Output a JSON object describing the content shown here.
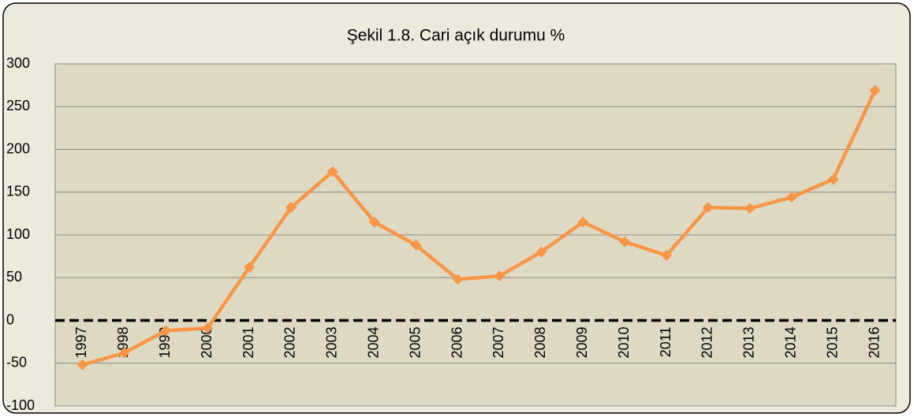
{
  "chart_data": {
    "type": "line",
    "title": "Şekil 1.8. Cari açık durumu %",
    "categories": [
      "1997",
      "1998",
      "1999",
      "2000",
      "2001",
      "2002",
      "2003",
      "2004",
      "2005",
      "2006",
      "2007",
      "2008",
      "2009",
      "2010",
      "2011",
      "2012",
      "2013",
      "2014",
      "2015",
      "2016"
    ],
    "series": [
      {
        "name": "Cari açık durumu",
        "color": "#f79646",
        "values": [
          -52,
          -38,
          -12,
          -9,
          62,
          132,
          174,
          115,
          88,
          48,
          52,
          80,
          115,
          92,
          76,
          132,
          131,
          144,
          165,
          269
        ]
      }
    ],
    "ylim": [
      -100,
      300
    ],
    "yticks": [
      -100,
      -50,
      0,
      50,
      100,
      150,
      200,
      250,
      300
    ],
    "grid": true
  }
}
